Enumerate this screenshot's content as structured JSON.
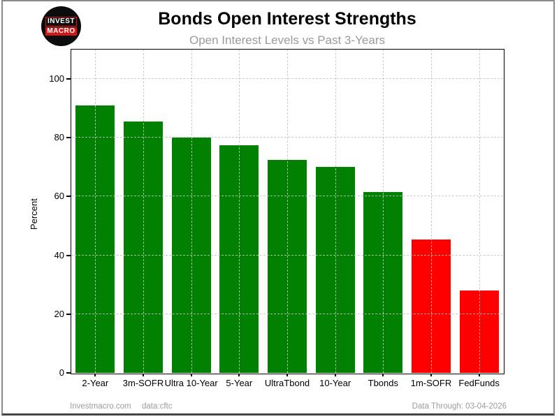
{
  "header": {
    "title": "Bonds Open Interest Strengths",
    "subtitle": "Open Interest Levels vs Past 3-Years",
    "logo": {
      "line1": "INVEST",
      "line2": "MACRO"
    }
  },
  "chart_data": {
    "type": "bar",
    "title": "Bonds Open Interest Strengths",
    "subtitle": "Open Interest Levels vs Past 3-Years",
    "categories": [
      "2-Year",
      "3m-SOFR",
      "Ultra 10-Year",
      "5-Year",
      "UltraTbond",
      "10-Year",
      "Tbonds",
      "1m-SOFR",
      "FedFunds"
    ],
    "values": [
      91,
      85.5,
      80,
      77.5,
      72.5,
      70,
      61.5,
      45.5,
      28
    ],
    "bar_colors": [
      "#028002",
      "#028002",
      "#028002",
      "#028002",
      "#028002",
      "#028002",
      "#028002",
      "#fe0000",
      "#fe0000"
    ],
    "xlabel": "",
    "ylabel": "Percent",
    "yticks": [
      0,
      20,
      40,
      60,
      80,
      100
    ],
    "ylim": [
      0,
      110
    ],
    "grid": "dashed, horizontal and vertical",
    "legend": "none"
  },
  "footer": {
    "site": "Investmacro.com",
    "source": "data:cftc",
    "data_through": "Data Through: 03-04-2026"
  },
  "colors": {
    "positive_bar": "#028002",
    "negative_bar": "#fe0000",
    "gridline": "#c3c3c3",
    "subtitle_text": "#9a9a9a",
    "footer_text": "#9b9b9b",
    "logo_red": "#d01818",
    "logo_bg": "#0c0c0c"
  }
}
